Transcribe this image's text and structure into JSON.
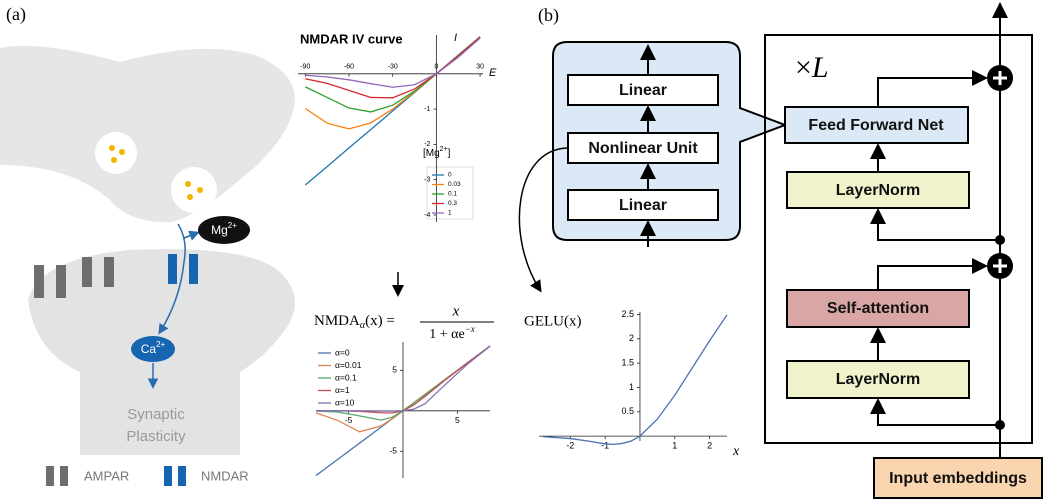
{
  "diagram": {
    "panel_a": {
      "label": "(a)",
      "mg": [
        "Mg",
        "2+"
      ],
      "ca": [
        "Ca",
        "2+"
      ],
      "outcome": [
        "Synaptic",
        "Plasticity"
      ],
      "legend": [
        "AMPAR",
        "NMDAR"
      ]
    },
    "panel_b": {
      "label": "(b)",
      "ffn_detail": [
        "Linear",
        "Nonlinear Unit",
        "Linear"
      ],
      "repeat": [
        "×",
        "L"
      ],
      "blocks": [
        "Feed Forward Net",
        "LayerNorm",
        "Self-attention",
        "LayerNorm"
      ],
      "input": "Input embeddings"
    }
  },
  "chart_data": [
    {
      "type": "line",
      "title": "NMDAR IV curve",
      "x_label": "E",
      "y_label": "I",
      "legend_title": [
        "[Mg",
        "2+",
        "]"
      ],
      "x": [
        -90,
        -75,
        -60,
        -45,
        -30,
        -15,
        0,
        15,
        30
      ],
      "series": [
        {
          "name": "0",
          "color": "#1f77b4",
          "values": [
            -3.15,
            -2.63,
            -2.1,
            -1.58,
            -1.05,
            -0.53,
            0,
            0.53,
            1.05
          ]
        },
        {
          "name": "0.03",
          "color": "#ff7f0e",
          "values": [
            -0.98,
            -1.4,
            -1.56,
            -1.39,
            -1,
            -0.51,
            0,
            0.52,
            1.05
          ]
        },
        {
          "name": "0.1",
          "color": "#2ca02c",
          "values": [
            -0.37,
            -0.67,
            -0.97,
            -1.08,
            -0.89,
            -0.49,
            0,
            0.52,
            1.05
          ]
        },
        {
          "name": "0.3",
          "color": "#d62728",
          "values": [
            -0.14,
            -0.27,
            -0.47,
            -0.67,
            -0.68,
            -0.43,
            0,
            0.51,
            1.04
          ]
        },
        {
          "name": "1",
          "color": "#9467bd",
          "values": [
            -0.04,
            -0.09,
            -0.17,
            -0.28,
            -0.38,
            -0.31,
            0,
            0.47,
            1.01
          ]
        }
      ],
      "xlim": [
        -95,
        32
      ],
      "ylim": [
        -4.2,
        1.1
      ],
      "xticks": [
        -90,
        -60,
        -30,
        0,
        30
      ],
      "yticks": [
        -4,
        -3,
        -2,
        -1
      ]
    },
    {
      "type": "line",
      "title": [
        "NMDA",
        "α",
        "(x) =",
        "x",
        "1 + αe",
        "−x"
      ],
      "x": [
        -8,
        -6,
        -4,
        -2,
        -1,
        0,
        1,
        2,
        4,
        6,
        8
      ],
      "series": [
        {
          "name": "α=0",
          "color": "#4c72b0",
          "values": [
            -8,
            -6,
            -4,
            -2,
            -1,
            0,
            1,
            2,
            4,
            6,
            8
          ]
        },
        {
          "name": "α=0.01",
          "color": "#dd8452",
          "values": [
            -0.26,
            -1.19,
            -2.59,
            -1.86,
            -0.97,
            0,
            1,
            2,
            4,
            6,
            8
          ]
        },
        {
          "name": "α=0.1",
          "color": "#55a868",
          "values": [
            -0.03,
            -0.15,
            -0.62,
            -1.15,
            -0.79,
            0,
            0.96,
            1.97,
            3.99,
            5.99,
            8
          ]
        },
        {
          "name": "α=1",
          "color": "#c44e52",
          "values": [
            0,
            -0.01,
            -0.07,
            -0.24,
            -0.27,
            0,
            0.73,
            1.76,
            3.93,
            5.99,
            8
          ]
        },
        {
          "name": "α=10",
          "color": "#8172b3",
          "values": [
            0,
            0,
            -0.01,
            -0.03,
            -0.04,
            0,
            0.21,
            0.85,
            3.38,
            5.85,
            7.97
          ]
        }
      ],
      "xlim": [
        -8,
        8
      ],
      "ylim": [
        -8.3,
        8.5
      ],
      "xticks": [
        -5,
        5
      ],
      "yticks": [
        -5,
        5
      ]
    },
    {
      "type": "line",
      "title": "GELU(x)",
      "x_label": "x",
      "color": "#4c72b0",
      "x": [
        -2.8,
        -2,
        -1.5,
        -1,
        -0.75,
        -0.5,
        -0.25,
        0,
        0.5,
        1,
        1.5,
        2,
        2.5
      ],
      "values": [
        -0.01,
        -0.05,
        -0.1,
        -0.16,
        -0.17,
        -0.15,
        -0.1,
        0,
        0.35,
        0.84,
        1.4,
        1.96,
        2.49
      ],
      "xlim": [
        -2.9,
        2.5
      ],
      "ylim": [
        -0.1,
        2.55
      ],
      "xticks": [
        -2,
        -1,
        1,
        2
      ],
      "yticks": [
        0.5,
        1,
        1.5,
        2,
        2.5
      ]
    }
  ]
}
